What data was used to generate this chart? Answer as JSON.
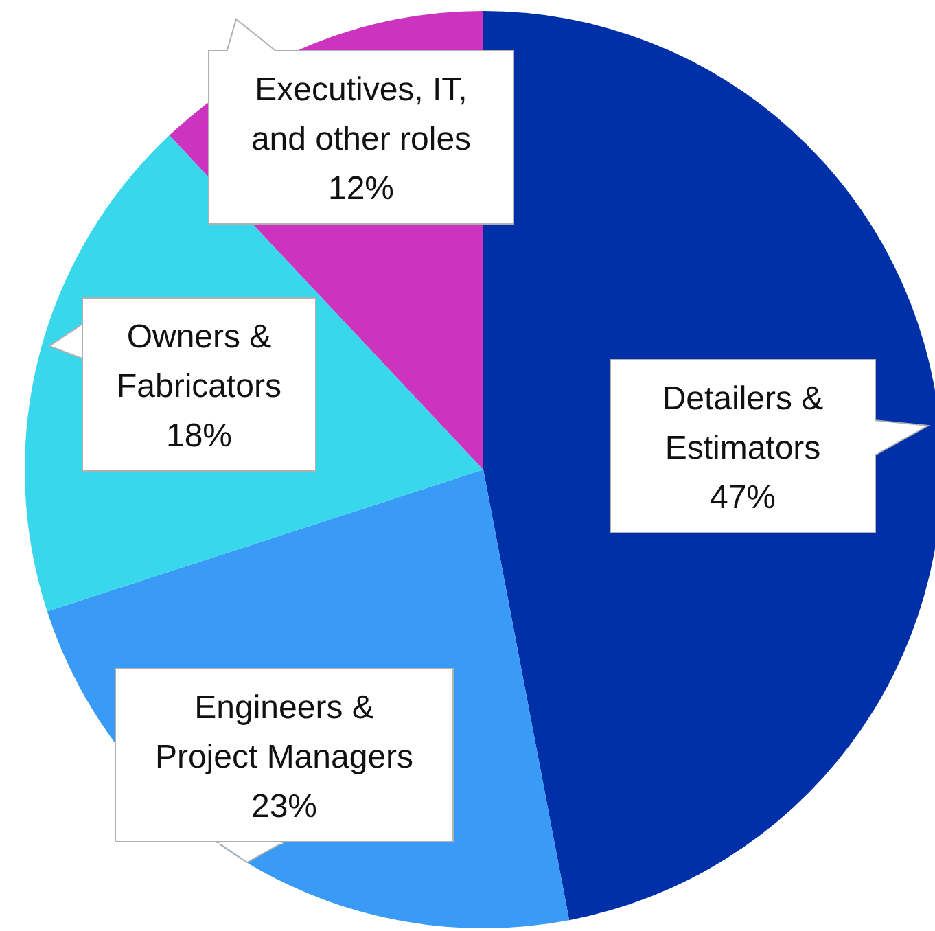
{
  "chart_data": {
    "type": "pie",
    "categories": [
      "Detailers & Estimators",
      "Engineers & Project Managers",
      "Owners & Fabricators",
      "Executives, IT, and other roles"
    ],
    "values": [
      47,
      23,
      18,
      12
    ],
    "colors": [
      "#0030a8",
      "#3a9bf6",
      "#38d7ec",
      "#cc33bf"
    ],
    "value_labels": [
      "47%",
      "23%",
      "18%",
      "12%"
    ]
  }
}
